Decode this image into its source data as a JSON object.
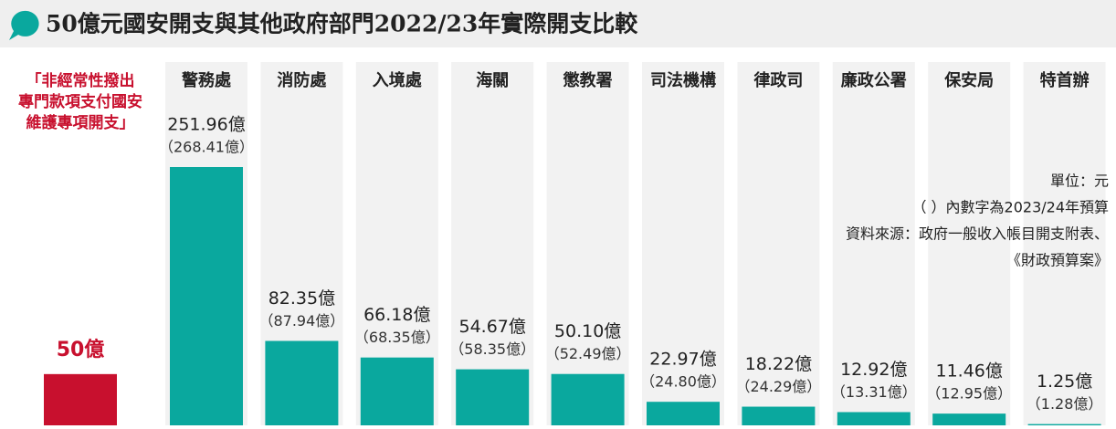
{
  "chart_data": {
    "type": "bar",
    "title": "50億元國安開支與其他政府部門2022/23年實際開支比較",
    "highlight": {
      "label_lines": [
        "「非經常性撥出",
        "專門款項支付國安",
        "維護專項開支」"
      ],
      "value": 50,
      "value_label": "50億",
      "color": "#c8102e"
    },
    "categories": [
      "警務處",
      "消防處",
      "入境處",
      "海關",
      "懲教署",
      "司法機構",
      "律政司",
      "廉政公署",
      "保安局",
      "特首辦"
    ],
    "values": [
      251.96,
      82.35,
      66.18,
      54.67,
      50.1,
      22.97,
      18.22,
      12.92,
      11.46,
      1.25
    ],
    "value_labels": [
      "251.96億",
      "82.35億",
      "66.18億",
      "54.67億",
      "50.10億",
      "22.97億",
      "18.22億",
      "12.92億",
      "11.46億",
      "1.25億"
    ],
    "budget_values": [
      268.41,
      87.94,
      68.35,
      58.35,
      52.49,
      24.8,
      24.29,
      13.31,
      12.95,
      1.28
    ],
    "budget_labels": [
      "（268.41億）",
      "（87.94億）",
      "（68.35億）",
      "（58.35億）",
      "（52.49億）",
      "（24.80億）",
      "（24.29億）",
      "（13.31億）",
      "（12.95億）",
      "（1.28億）"
    ],
    "color": "#0aa89e",
    "notes": [
      "單位：元",
      "（ ）內數字為2023/24年預算",
      "資料來源：政府一般收入帳目開支附表、",
      "《財政預算案》"
    ]
  }
}
